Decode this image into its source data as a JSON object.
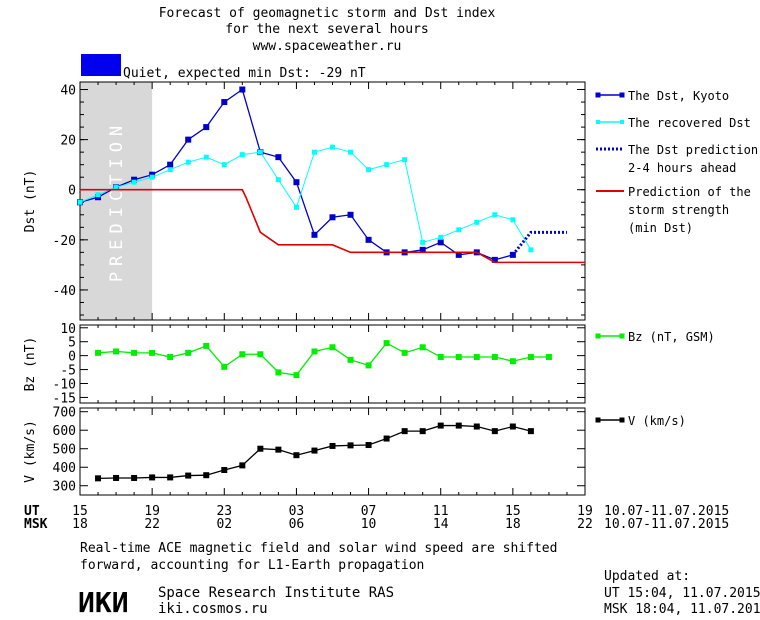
{
  "header": {
    "title_lines": [
      "Forecast of geomagnetic storm and Dst index",
      "for the next several hours",
      "www.spaceweather.ru"
    ],
    "status_text": "Quiet, expected min Dst: -29 nT",
    "status_color": "#0000ee"
  },
  "colors": {
    "dst_kyoto": "#0000cc",
    "recovered": "#00ffff",
    "prediction_short": "#0000cc",
    "storm_strength": "#e00000",
    "bz": "#00ee00",
    "speed": "#000000",
    "prediction_band": "#d8d8d8"
  },
  "chart_data": [
    {
      "type": "line",
      "id": "dst",
      "ylabel": "Dst (nT)",
      "ylim": [
        -52,
        43
      ],
      "yticks": [
        40,
        20,
        0,
        -20,
        -40
      ],
      "prediction_band_label": "PREDICTION",
      "prediction_band_x": [
        15,
        19
      ],
      "series": [
        {
          "name": "The Dst, Kyoto",
          "key": "dst_kyoto",
          "style": "line-square",
          "x": [
            15,
            16,
            17,
            18,
            19,
            20,
            21,
            22,
            23,
            24,
            25,
            26,
            27,
            28,
            29,
            30,
            31,
            32,
            33,
            34,
            35,
            36,
            37,
            38,
            39
          ],
          "y": [
            -5,
            -3,
            1,
            4,
            6,
            10,
            20,
            25,
            35,
            40,
            15,
            13,
            3,
            -18,
            -11,
            -10,
            -20,
            -25,
            -25,
            -24,
            -21,
            -26,
            -25,
            -28,
            -26
          ]
        },
        {
          "name": "The recovered Dst",
          "key": "recovered",
          "style": "line-square-small",
          "x": [
            15,
            16,
            17,
            18,
            19,
            20,
            21,
            22,
            23,
            24,
            25,
            26,
            27,
            28,
            29,
            30,
            31,
            32,
            33,
            34,
            35,
            36,
            37,
            38,
            39,
            40
          ],
          "y": [
            -5,
            -2,
            1,
            3,
            5,
            8,
            11,
            13,
            10,
            14,
            15,
            4,
            -7,
            15,
            17,
            15,
            8,
            10,
            12,
            -21,
            -19,
            -16,
            -13,
            -10,
            -12,
            -24
          ]
        },
        {
          "name": "The Dst prediction\n2-4 hours ahead",
          "key": "prediction_short",
          "style": "dotted",
          "x": [
            39,
            40,
            41,
            42
          ],
          "y": [
            -26,
            -17,
            -17,
            -17
          ]
        },
        {
          "name": "Prediction of the\nstorm strength\n(min Dst)",
          "key": "storm_strength",
          "style": "step",
          "x": [
            15,
            24,
            24.2,
            25,
            26,
            27,
            28,
            29,
            30,
            31,
            32,
            33,
            34,
            35,
            36,
            37,
            38,
            39,
            40,
            41,
            42,
            43
          ],
          "y": [
            0,
            0,
            -3,
            -17,
            -22,
            -22,
            -22,
            -22,
            -25,
            -25,
            -25,
            -25,
            -25,
            -25,
            -25,
            -25,
            -29,
            -29,
            -29,
            -29,
            -29,
            -29
          ]
        }
      ]
    },
    {
      "type": "line",
      "id": "bz",
      "ylabel": "Bz (nT)",
      "ylim": [
        -17,
        11
      ],
      "yticks": [
        10,
        5,
        0,
        -5,
        -10,
        -15
      ],
      "series": [
        {
          "name": "Bz (nT, GSM)",
          "key": "bz",
          "x": [
            16,
            17,
            18,
            19,
            20,
            21,
            22,
            23,
            24,
            25,
            26,
            27,
            28,
            29,
            30,
            31,
            32,
            33,
            34,
            35,
            36,
            37,
            38,
            39,
            40,
            41
          ],
          "y": [
            1,
            1.5,
            1,
            1,
            -0.5,
            1,
            3.5,
            -4,
            0.5,
            0.5,
            -6,
            -7,
            1.5,
            3,
            -1.5,
            -3.5,
            4.5,
            1,
            3,
            -0.5,
            -0.5,
            -0.5,
            -0.5,
            -2,
            -0.5,
            -0.5
          ]
        }
      ]
    },
    {
      "type": "line",
      "id": "speed",
      "ylabel": "V (km/s)",
      "ylim": [
        250,
        720
      ],
      "yticks": [
        700,
        600,
        500,
        400,
        300
      ],
      "series": [
        {
          "name": "V (km/s)",
          "key": "speed",
          "x": [
            16,
            17,
            18,
            19,
            20,
            21,
            22,
            23,
            24,
            25,
            26,
            27,
            28,
            29,
            30,
            31,
            32,
            33,
            34,
            35,
            36,
            37,
            38,
            39,
            40
          ],
          "y": [
            340,
            342,
            342,
            345,
            345,
            355,
            357,
            385,
            410,
            500,
            495,
            465,
            490,
            515,
            518,
            520,
            555,
            595,
            595,
            625,
            625,
            620,
            595,
            620,
            595
          ]
        }
      ]
    }
  ],
  "axis": {
    "xlim": [
      15,
      43
    ],
    "tick_hours": [
      15,
      19,
      23,
      27,
      31,
      35,
      39,
      43
    ],
    "ut_label": "UT",
    "msk_label": "MSK",
    "ut_ticks": [
      "15",
      "19",
      "23",
      "03",
      "07",
      "11",
      "15",
      "19"
    ],
    "msk_ticks": [
      "18",
      "22",
      "02",
      "06",
      "10",
      "14",
      "18",
      "22"
    ],
    "date_range_ut": "10.07-11.07.2015",
    "date_range_msk": "10.07-11.07.2015"
  },
  "footer": {
    "note_line1": "Real-time ACE magnetic field and solar wind speed are shifted",
    "note_line2": "forward, accounting for L1-Earth propagation",
    "logo_text": "ИКИ",
    "institute": "Space Research Institute RAS",
    "site": "iki.cosmos.ru",
    "updated_label": "Updated at:",
    "updated_ut": "UT  15:04, 11.07.2015",
    "updated_msk": "MSK 18:04, 11.07.2015"
  }
}
